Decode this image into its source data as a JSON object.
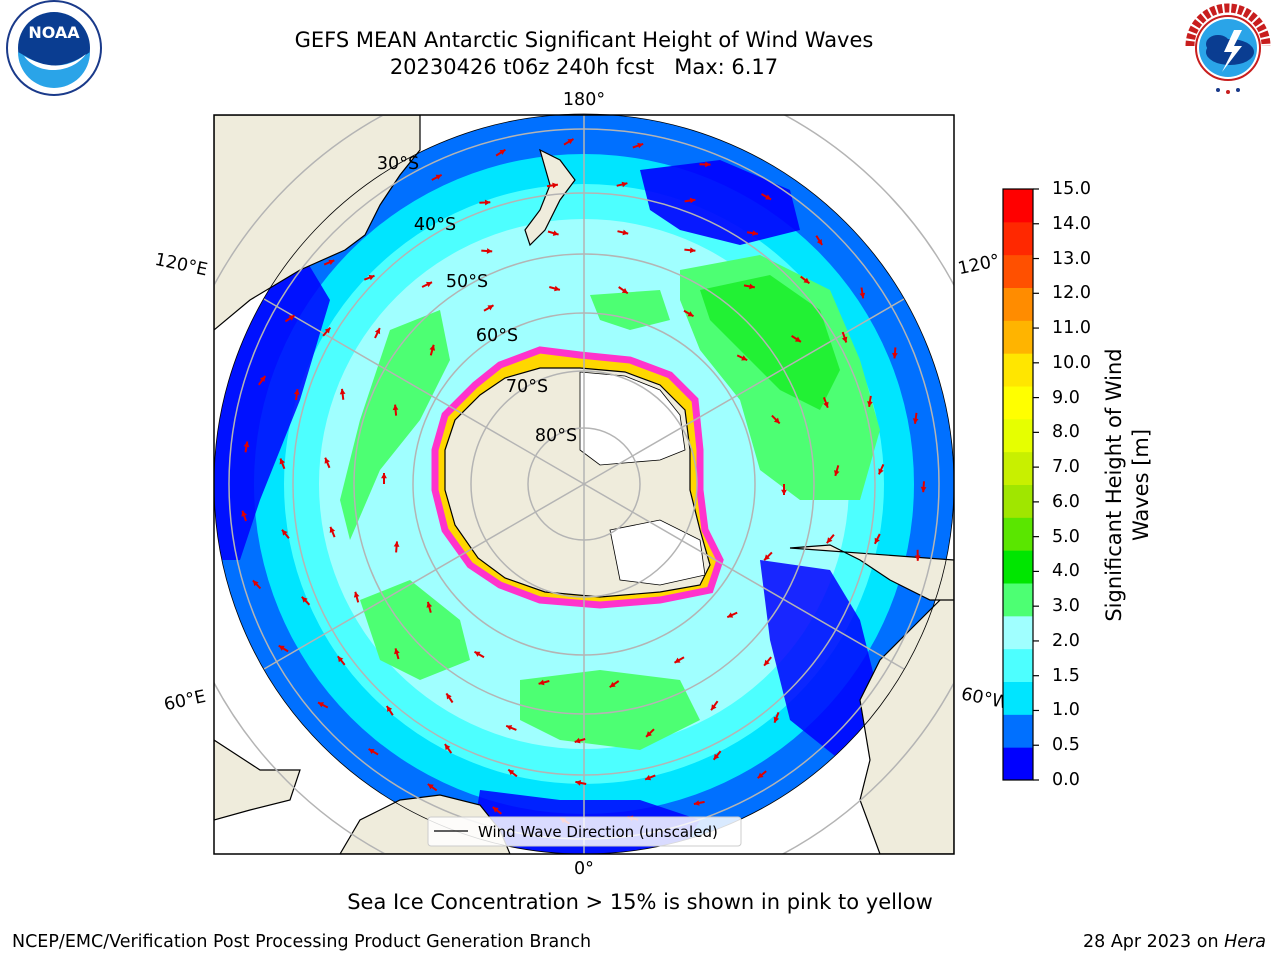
{
  "title": {
    "line1": "GEFS MEAN Antarctic Significant Height of Wind Waves",
    "line2": "20230426 t06z 240h fcst   Max: 6.17"
  },
  "logos": {
    "left": {
      "name": "noaa-logo",
      "text": "NOAA"
    },
    "right": {
      "name": "nws-logo",
      "text": "NATIONAL WEATHER SERVICE"
    }
  },
  "map": {
    "projection": "south-polar-stereographic",
    "longitude_labels": {
      "top": "180°",
      "bottom": "0°",
      "upper_left": "120°E",
      "lower_left": "60°E",
      "upper_right": "120°",
      "lower_right": "60°W"
    },
    "latitude_labels": [
      "30°S",
      "40°S",
      "50°S",
      "60°S",
      "70°S",
      "80°S"
    ],
    "legend": {
      "line_label": "Wind Wave Direction (unscaled)"
    },
    "arrow_color": "#e00000",
    "ice_colors": [
      "#ff33cc",
      "#ffd700"
    ],
    "land_color": "#efecdc"
  },
  "colorbar": {
    "label": "Significant Height of Wind Waves [m]",
    "label_lines": [
      "Significant Height of Wind",
      "Waves [m]"
    ],
    "ticks": [
      "15.0",
      "14.0",
      "13.0",
      "12.0",
      "11.0",
      "10.0",
      "9.0",
      "8.0",
      "7.0",
      "6.0",
      "5.0",
      "4.0",
      "3.0",
      "2.0",
      "1.5",
      "1.0",
      "0.5",
      "0.0"
    ],
    "colors_bottom_to_top": [
      "#0000ff",
      "#0070ff",
      "#00e5ff",
      "#4dffff",
      "#a0ffff",
      "#4dff73",
      "#00e600",
      "#5ae600",
      "#a0e600",
      "#c8f000",
      "#e6ff00",
      "#ffff00",
      "#ffe600",
      "#ffb400",
      "#ff8c00",
      "#ff5000",
      "#ff2800",
      "#ff0000"
    ]
  },
  "notes": {
    "ice": "Sea Ice Concentration > 15% is shown in pink to yellow"
  },
  "footer": {
    "left": "NCEP/EMC/Verification Post Processing Product Generation Branch",
    "date": "28 Apr 2023 on",
    "host": "Hera"
  }
}
